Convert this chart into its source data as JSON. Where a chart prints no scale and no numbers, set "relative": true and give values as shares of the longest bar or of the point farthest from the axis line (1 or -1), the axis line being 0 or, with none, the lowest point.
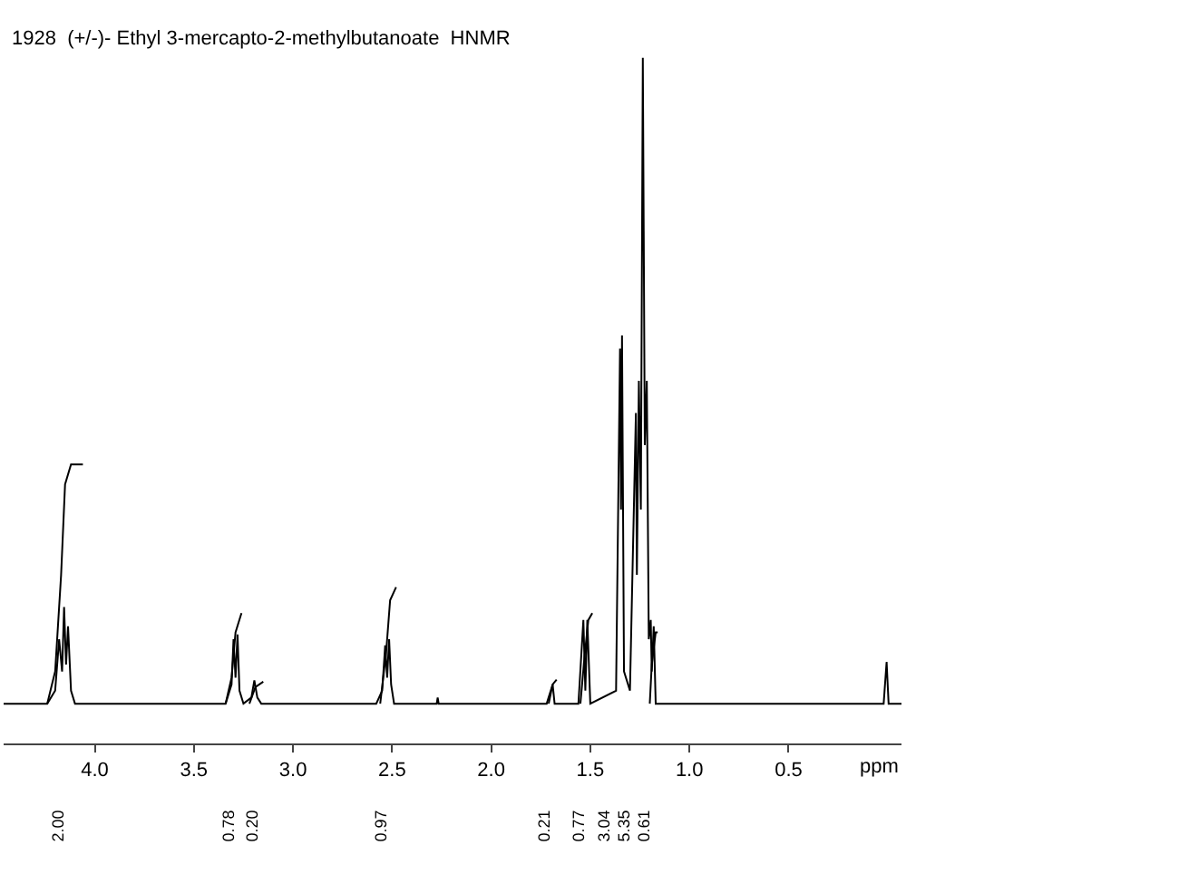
{
  "chart_data": {
    "type": "line",
    "title": "1928  (+/-)- Ethyl 3-mercapto-2-methylbutanoate  HNMR",
    "xlabel": "ppm",
    "relative": true,
    "grid": false,
    "marker": "none",
    "line_style": "solid",
    "xlim": [
      4.46,
      -0.07
    ],
    "xticks": [
      {
        "value": 4.0,
        "label": "4.0"
      },
      {
        "value": 3.5,
        "label": "3.5"
      },
      {
        "value": 3.0,
        "label": "3.0"
      },
      {
        "value": 2.5,
        "label": "2.5"
      },
      {
        "value": 2.0,
        "label": "2.0"
      },
      {
        "value": 1.5,
        "label": "1.5"
      },
      {
        "value": 1.0,
        "label": "1.0"
      },
      {
        "value": 0.5,
        "label": "0.5"
      }
    ],
    "series": [
      {
        "color": "#000000",
        "x": [
          4.46,
          4.24,
          4.2,
          4.18,
          4.165,
          4.155,
          4.145,
          4.135,
          4.12,
          4.1,
          3.34,
          3.31,
          3.3,
          3.29,
          3.28,
          3.27,
          3.25,
          3.21,
          3.195,
          3.18,
          3.16,
          2.58,
          2.55,
          2.535,
          2.525,
          2.515,
          2.505,
          2.49,
          2.275,
          2.27,
          2.265,
          1.72,
          1.69,
          1.68,
          1.56,
          1.535,
          1.525,
          1.515,
          1.5,
          1.37,
          1.35,
          1.345,
          1.34,
          1.33,
          1.3,
          1.27,
          1.265,
          1.255,
          1.245,
          1.235,
          1.225,
          1.215,
          1.205,
          1.195,
          1.19,
          1.18,
          1.17,
          0.02,
          0.005,
          -0.005,
          -0.07
        ],
        "values": [
          0.058,
          0.058,
          0.077,
          0.152,
          0.105,
          0.199,
          0.115,
          0.171,
          0.077,
          0.058,
          0.058,
          0.086,
          0.152,
          0.096,
          0.159,
          0.077,
          0.058,
          0.067,
          0.092,
          0.067,
          0.058,
          0.058,
          0.077,
          0.143,
          0.096,
          0.152,
          0.086,
          0.058,
          0.058,
          0.067,
          0.058,
          0.058,
          0.086,
          0.058,
          0.058,
          0.18,
          0.077,
          0.18,
          0.058,
          0.077,
          0.576,
          0.341,
          0.595,
          0.105,
          0.077,
          0.482,
          0.246,
          0.529,
          0.341,
          1,
          0.435,
          0.529,
          0.152,
          0.18,
          0.105,
          0.171,
          0.058,
          0.058,
          0.119,
          0.058,
          0.058
        ]
      },
      {
        "color": "#000000",
        "x": [
          4.24,
          4.2,
          4.17,
          4.15,
          4.12,
          4.06,
          4.0,
          3.34,
          3.31,
          3.29,
          3.26,
          3.24,
          3.22,
          3.19,
          3.15,
          3.0,
          2.56,
          2.53,
          2.51,
          2.48,
          2.0,
          1.71,
          1.69,
          1.67,
          1.6,
          1.55,
          1.53,
          1.51,
          1.49,
          1.3,
          1.2,
          1.19,
          1.17,
          1.16
        ],
        "values": [
          0.058,
          0.105,
          0.246,
          0.378,
          0.407,
          0.407,
          null,
          0.058,
          0.096,
          0.162,
          0.19,
          null,
          0.058,
          0.082,
          0.09,
          null,
          0.058,
          0.133,
          0.209,
          0.228,
          null,
          0.058,
          0.086,
          0.093,
          null,
          0.058,
          0.124,
          0.18,
          0.19,
          null,
          0.058,
          0.115,
          0.162,
          0.162
        ]
      }
    ],
    "annotations": [
      "2.00",
      "0.78",
      "0.20",
      "0.97",
      "0.21",
      "0.77",
      "3.04",
      "5.35",
      "0.61"
    ]
  }
}
